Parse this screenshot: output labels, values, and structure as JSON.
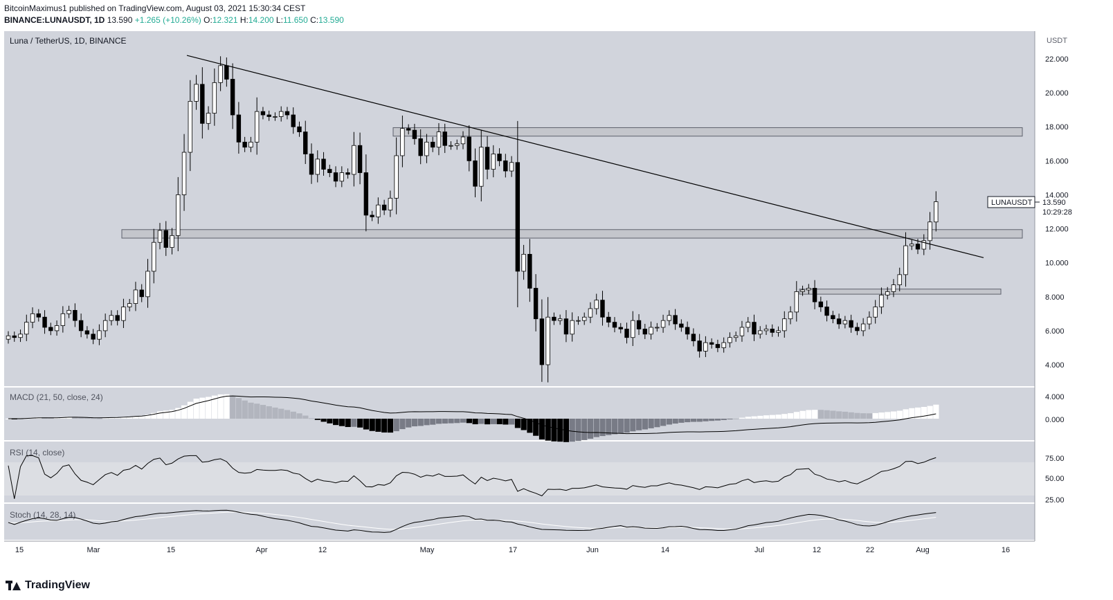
{
  "header": {
    "publisher_line": "BitcoinMaximus1 published on TradingView.com, August 03, 2021 15:30:34 CEST",
    "symbol": "BINANCE:LUNAUSDT, 1D",
    "price": "13.590",
    "change": "+1.265 (+10.26%)",
    "o_label": "O:",
    "o_value": "12.321",
    "h_label": "H:",
    "h_value": "14.200",
    "l_label": "L:",
    "l_value": "11.650",
    "c_label": "C:",
    "c_value": "13.590"
  },
  "pane_title": "Luna / TetherUS, 1D, BINANCE",
  "currency": "USDT",
  "price_badge": {
    "symbol": "LUNAUSDT",
    "price": "13.590",
    "countdown": "10:29:28"
  },
  "footer": {
    "brand": "TradingView"
  },
  "colors": {
    "background": "#d1d4dc",
    "axis_bg": "#ffffff",
    "candle_up": "#ffffff",
    "candle_down": "#000000",
    "line": "#000000",
    "zone": "#c8cad0"
  },
  "chart_data": [
    {
      "type": "candlestick",
      "title": "Luna / TetherUS, 1D, BINANCE",
      "ylabel": "USDT",
      "ylim": [
        3.0,
        23.5
      ],
      "yticks": [
        "22.000",
        "20.000",
        "18.000",
        "16.000",
        "14.000",
        "12.000",
        "10.000",
        "8.000",
        "6.000",
        "4.000"
      ],
      "xticks": [
        "15",
        "Mar",
        "15",
        "Apr",
        "12",
        "May",
        "17",
        "Jun",
        "14",
        "Jul",
        "12",
        "22",
        "Aug",
        "16"
      ],
      "close_series": [
        5.7,
        5.6,
        5.8,
        6.5,
        7.0,
        6.8,
        6.2,
        6.0,
        6.3,
        7.0,
        7.2,
        6.6,
        6.0,
        5.8,
        5.5,
        6.0,
        6.6,
        6.9,
        6.6,
        7.4,
        7.6,
        8.4,
        8.0,
        9.5,
        11.2,
        11.9,
        10.9,
        11.6,
        14.0,
        16.5,
        19.5,
        20.5,
        18.2,
        18.8,
        20.6,
        21.6,
        20.8,
        18.7,
        17.1,
        16.8,
        17.1,
        18.9,
        18.7,
        18.6,
        18.6,
        18.9,
        18.7,
        18.0,
        17.7,
        16.4,
        15.2,
        16.1,
        15.5,
        15.3,
        14.8,
        15.3,
        15.2,
        16.9,
        15.3,
        12.8,
        12.7,
        13.4,
        13.1,
        13.8,
        16.3,
        17.9,
        17.8,
        17.3,
        16.3,
        17.1,
        16.8,
        17.7,
        16.9,
        16.9,
        17.0,
        17.4,
        16.0,
        14.5,
        16.8,
        15.5,
        16.4,
        16.0,
        15.4,
        15.9,
        9.5,
        10.5,
        8.5,
        6.7,
        4.0,
        6.8,
        6.6,
        6.7,
        5.8,
        6.6,
        6.6,
        6.8,
        7.3,
        7.8,
        6.8,
        6.5,
        6.2,
        6.1,
        5.6,
        6.6,
        6.1,
        5.8,
        6.2,
        6.2,
        6.6,
        6.9,
        6.4,
        6.2,
        5.8,
        5.4,
        4.8,
        5.3,
        5.2,
        5.0,
        5.3,
        5.6,
        5.7,
        6.2,
        6.5,
        5.8,
        6.0,
        6.1,
        5.9,
        6.0,
        6.7,
        7.1,
        8.3,
        8.4,
        8.5,
        7.7,
        7.4,
        6.9,
        6.7,
        6.4,
        6.6,
        6.2,
        6.0,
        6.4,
        6.8,
        7.4,
        8.1,
        8.3,
        8.7,
        9.3,
        11.0,
        11.1,
        10.8,
        11.3,
        12.4,
        13.59
      ],
      "resistance_zones": [
        [
          17.45,
          17.95
        ],
        [
          11.45,
          11.95
        ],
        [
          8.15,
          8.45
        ]
      ],
      "trendline": [
        [
          21.45,
          22.2
        ],
        [
          10.3,
          12.4
        ]
      ]
    },
    {
      "type": "line",
      "title": "MACD (21, 50, close, 24)",
      "yticks": [
        "4.000",
        "0.000"
      ]
    },
    {
      "type": "line",
      "title": "RSI (14, close)",
      "yticks": [
        "75.00",
        "50.00",
        "25.00"
      ]
    },
    {
      "type": "line",
      "title": "Stoch (14, 28, 14)"
    }
  ]
}
